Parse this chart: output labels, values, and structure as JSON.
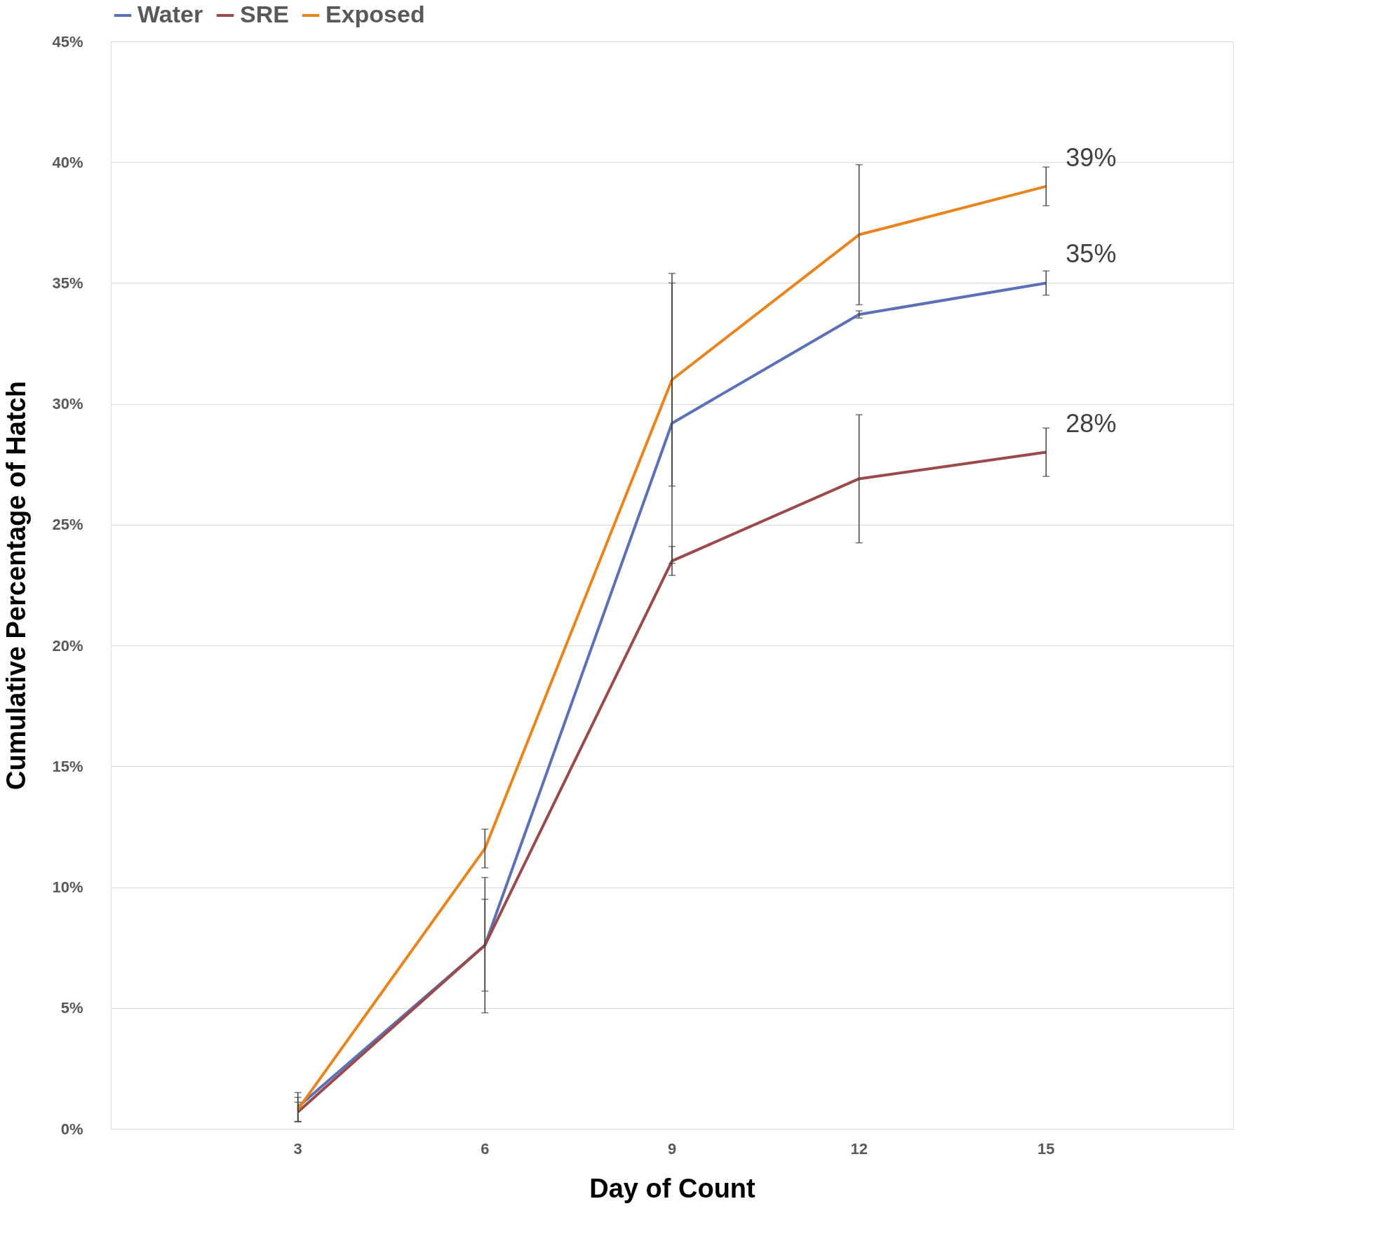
{
  "chart_data": {
    "type": "line",
    "xlabel": "Day of Count",
    "ylabel": "Cumulative Percentage of Hatch",
    "categories": [
      "3",
      "6",
      "9",
      "12",
      "15"
    ],
    "series": [
      {
        "name": "Water",
        "color": "#5b70b5",
        "values": [
          0.9,
          7.6,
          29.2,
          33.7,
          35
        ],
        "errors": [
          0.6,
          1.9,
          5.8,
          0.15,
          0.5
        ],
        "value_labels": [
          null,
          null,
          null,
          null,
          "35%"
        ]
      },
      {
        "name": "SRE",
        "color": "#9b4a4c",
        "values": [
          0.7,
          7.6,
          23.5,
          26.9,
          28
        ],
        "errors": [
          0.4,
          2.8,
          0.6,
          2.65,
          1.0
        ],
        "value_labels": [
          null,
          null,
          null,
          null,
          "28%"
        ]
      },
      {
        "name": "Exposed",
        "color": "#e8851f",
        "values": [
          0.8,
          11.6,
          31,
          37,
          39
        ],
        "errors": [
          0.5,
          0.8,
          4.4,
          2.9,
          0.8
        ],
        "value_labels": [
          null,
          null,
          null,
          null,
          "39%"
        ]
      }
    ],
    "ylim": [
      0,
      45
    ],
    "yticks": [
      {
        "value": 0,
        "label": "0%"
      },
      {
        "value": 5,
        "label": "5%"
      },
      {
        "value": 10,
        "label": "10%"
      },
      {
        "value": 15,
        "label": "15%"
      },
      {
        "value": 20,
        "label": "20%"
      },
      {
        "value": 25,
        "label": "25%"
      },
      {
        "value": 30,
        "label": "30%"
      },
      {
        "value": 35,
        "label": "35%"
      },
      {
        "value": 40,
        "label": "40%"
      },
      {
        "value": 45,
        "label": "45%"
      }
    ],
    "grid": "y",
    "legend": "top",
    "marker": "none",
    "line_style": "solid"
  }
}
